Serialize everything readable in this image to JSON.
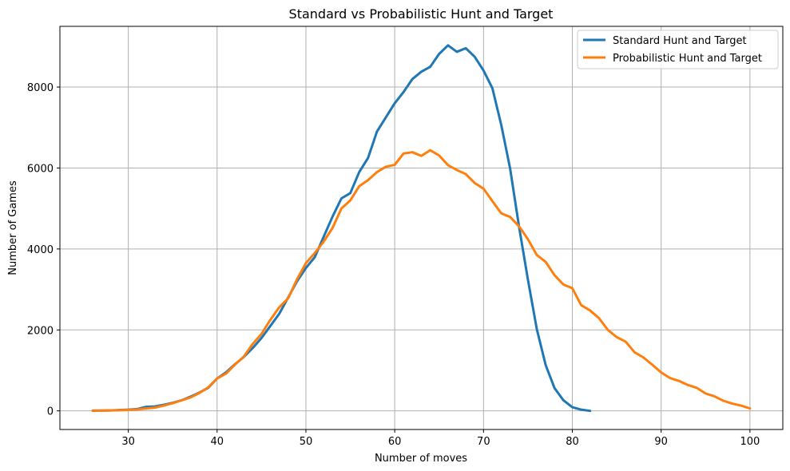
{
  "chart_data": {
    "type": "line",
    "title": "Standard vs Probabilistic Hunt and Target",
    "xlabel": "Number of moves",
    "ylabel": "Number of Games",
    "xlim": [
      22.3,
      103.7
    ],
    "ylim": [
      -460,
      9500
    ],
    "xticks": [
      30,
      40,
      50,
      60,
      70,
      80,
      90,
      100
    ],
    "yticks": [
      0,
      2000,
      4000,
      6000,
      8000
    ],
    "grid": true,
    "legend_position": "top-right",
    "series": [
      {
        "name": "Standard Hunt and Target",
        "color": "#1f77b4",
        "x": [
          26,
          27,
          28,
          29,
          30,
          31,
          32,
          33,
          34,
          35,
          36,
          37,
          38,
          39,
          40,
          41,
          42,
          43,
          44,
          45,
          46,
          47,
          48,
          49,
          50,
          51,
          52,
          53,
          54,
          55,
          56,
          57,
          58,
          59,
          60,
          61,
          62,
          63,
          64,
          65,
          66,
          67,
          68,
          69,
          70,
          71,
          72,
          73,
          74,
          75,
          76,
          77,
          78,
          79,
          80,
          81,
          82
        ],
        "y": [
          5,
          8,
          12,
          20,
          30,
          45,
          100,
          110,
          150,
          200,
          260,
          350,
          450,
          570,
          800,
          950,
          1150,
          1330,
          1550,
          1800,
          2100,
          2400,
          2800,
          3200,
          3530,
          3800,
          4300,
          4800,
          5250,
          5380,
          5900,
          6250,
          6900,
          7250,
          7600,
          7880,
          8200,
          8380,
          8500,
          8820,
          9030,
          8870,
          8960,
          8750,
          8410,
          7970,
          7060,
          5980,
          4550,
          3240,
          2020,
          1130,
          560,
          260,
          90,
          30,
          0
        ]
      },
      {
        "name": "Probabilistic Hunt and Target",
        "color": "#ff7f0e",
        "x": [
          26,
          27,
          28,
          29,
          30,
          31,
          32,
          33,
          34,
          35,
          36,
          37,
          38,
          39,
          40,
          41,
          42,
          43,
          44,
          45,
          46,
          47,
          48,
          49,
          50,
          51,
          52,
          53,
          54,
          55,
          56,
          57,
          58,
          59,
          60,
          61,
          62,
          63,
          64,
          65,
          66,
          67,
          68,
          69,
          70,
          71,
          72,
          73,
          74,
          75,
          76,
          77,
          78,
          79,
          80,
          81,
          82,
          83,
          84,
          85,
          86,
          87,
          88,
          89,
          90,
          91,
          92,
          93,
          94,
          95,
          96,
          97,
          98,
          99,
          100
        ],
        "y": [
          0,
          5,
          10,
          15,
          25,
          35,
          60,
          80,
          130,
          190,
          260,
          330,
          440,
          580,
          800,
          920,
          1140,
          1340,
          1650,
          1900,
          2250,
          2560,
          2780,
          3250,
          3650,
          3900,
          4180,
          4520,
          5000,
          5200,
          5550,
          5700,
          5900,
          6030,
          6080,
          6360,
          6390,
          6300,
          6440,
          6310,
          6070,
          5950,
          5850,
          5630,
          5490,
          5180,
          4880,
          4790,
          4560,
          4240,
          3850,
          3680,
          3350,
          3120,
          3030,
          2610,
          2480,
          2290,
          2000,
          1820,
          1710,
          1450,
          1320,
          1140,
          950,
          810,
          740,
          640,
          570,
          430,
          360,
          250,
          180,
          130,
          60
        ]
      }
    ]
  }
}
